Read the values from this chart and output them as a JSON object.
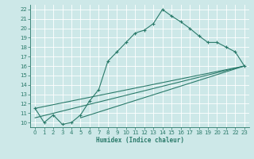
{
  "xlabel": "Humidex (Indice chaleur)",
  "bg_color": "#cde8e8",
  "grid_color": "#b8d8d8",
  "line_color": "#2a7a6a",
  "xlim": [
    -0.5,
    23.5
  ],
  "ylim": [
    9.5,
    22.5
  ],
  "xticks": [
    0,
    1,
    2,
    3,
    4,
    5,
    6,
    7,
    8,
    9,
    10,
    11,
    12,
    13,
    14,
    15,
    16,
    17,
    18,
    19,
    20,
    21,
    22,
    23
  ],
  "yticks": [
    10,
    11,
    12,
    13,
    14,
    15,
    16,
    17,
    18,
    19,
    20,
    21,
    22
  ],
  "curve1_x": [
    0,
    1,
    2,
    3,
    4,
    5,
    6,
    7,
    8,
    9,
    10,
    11,
    12,
    13,
    14,
    15,
    16,
    17,
    18,
    19,
    20,
    21,
    22,
    23
  ],
  "curve1_y": [
    11.5,
    10.0,
    10.8,
    9.8,
    10.0,
    10.8,
    12.3,
    13.5,
    16.5,
    17.5,
    18.5,
    19.5,
    19.8,
    20.5,
    22.0,
    21.3,
    20.7,
    20.0,
    19.2,
    18.5,
    18.5,
    18.0,
    17.5,
    16.0
  ],
  "curve2_x": [
    0,
    23
  ],
  "curve2_y": [
    11.5,
    16.0
  ],
  "curve3_x": [
    0,
    23
  ],
  "curve3_y": [
    10.5,
    16.0
  ],
  "curve4_x": [
    5,
    23
  ],
  "curve4_y": [
    10.5,
    16.0
  ]
}
